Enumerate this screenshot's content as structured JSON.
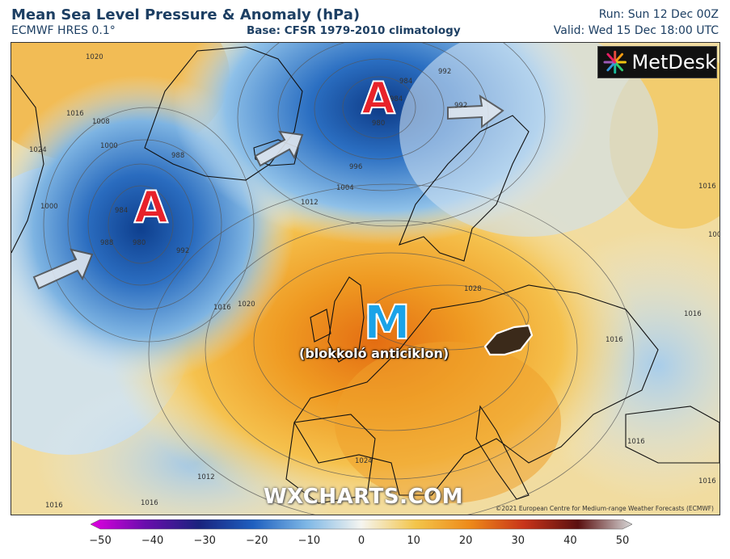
{
  "header": {
    "title": "Mean Sea Level Pressure & Anomaly (hPa)",
    "model": "ECMWF HRES 0.1°",
    "base": "Base: CFSR 1979-2010 climatology",
    "run": "Run: Sun 12 Dec 00Z",
    "valid": "Valid: Wed 15 Dec 18:00 UTC"
  },
  "logo": {
    "text": "MetDesk"
  },
  "markers": {
    "low_west": "A",
    "low_north": "A",
    "high_center": "M",
    "high_caption": "(blokkoló anticiklon)"
  },
  "isobar_labels": [
    "1020",
    "1016",
    "1008",
    "1024",
    "1000",
    "988",
    "984",
    "980",
    "992",
    "984",
    "980",
    "992",
    "996",
    "1004",
    "1012",
    "1016",
    "1020",
    "1028",
    "1016",
    "1012",
    "1016",
    "1024",
    "1016",
    "1016",
    "1004",
    "1000",
    "988",
    "984",
    "992",
    "1016",
    "1016",
    "1016"
  ],
  "watermark": "WXCHARTS.COM",
  "copyright": "©2021 European Centre for Medium-range Weather Forecasts (ECMWF)",
  "colorbar": {
    "ticks": [
      "−50",
      "−40",
      "−30",
      "−20",
      "−10",
      "0",
      "10",
      "20",
      "30",
      "40",
      "50"
    ],
    "colors": {
      "neg50": "#e000e0",
      "neg40": "#6a0dad",
      "neg30": "#1a237e",
      "neg20": "#1e5fbf",
      "neg10": "#7fb8e6",
      "zero": "#f5f5f0",
      "pos10": "#f3c54a",
      "pos20": "#ee8a1a",
      "pos30": "#c8341a",
      "pos40": "#5a1010",
      "pos50": "#d8d8d8"
    }
  },
  "colors": {
    "low_anomaly": "#2c74c4",
    "high_anomaly": "#ef8f1c",
    "land_outline": "#111111",
    "hungary_outline": "#ffffff"
  }
}
